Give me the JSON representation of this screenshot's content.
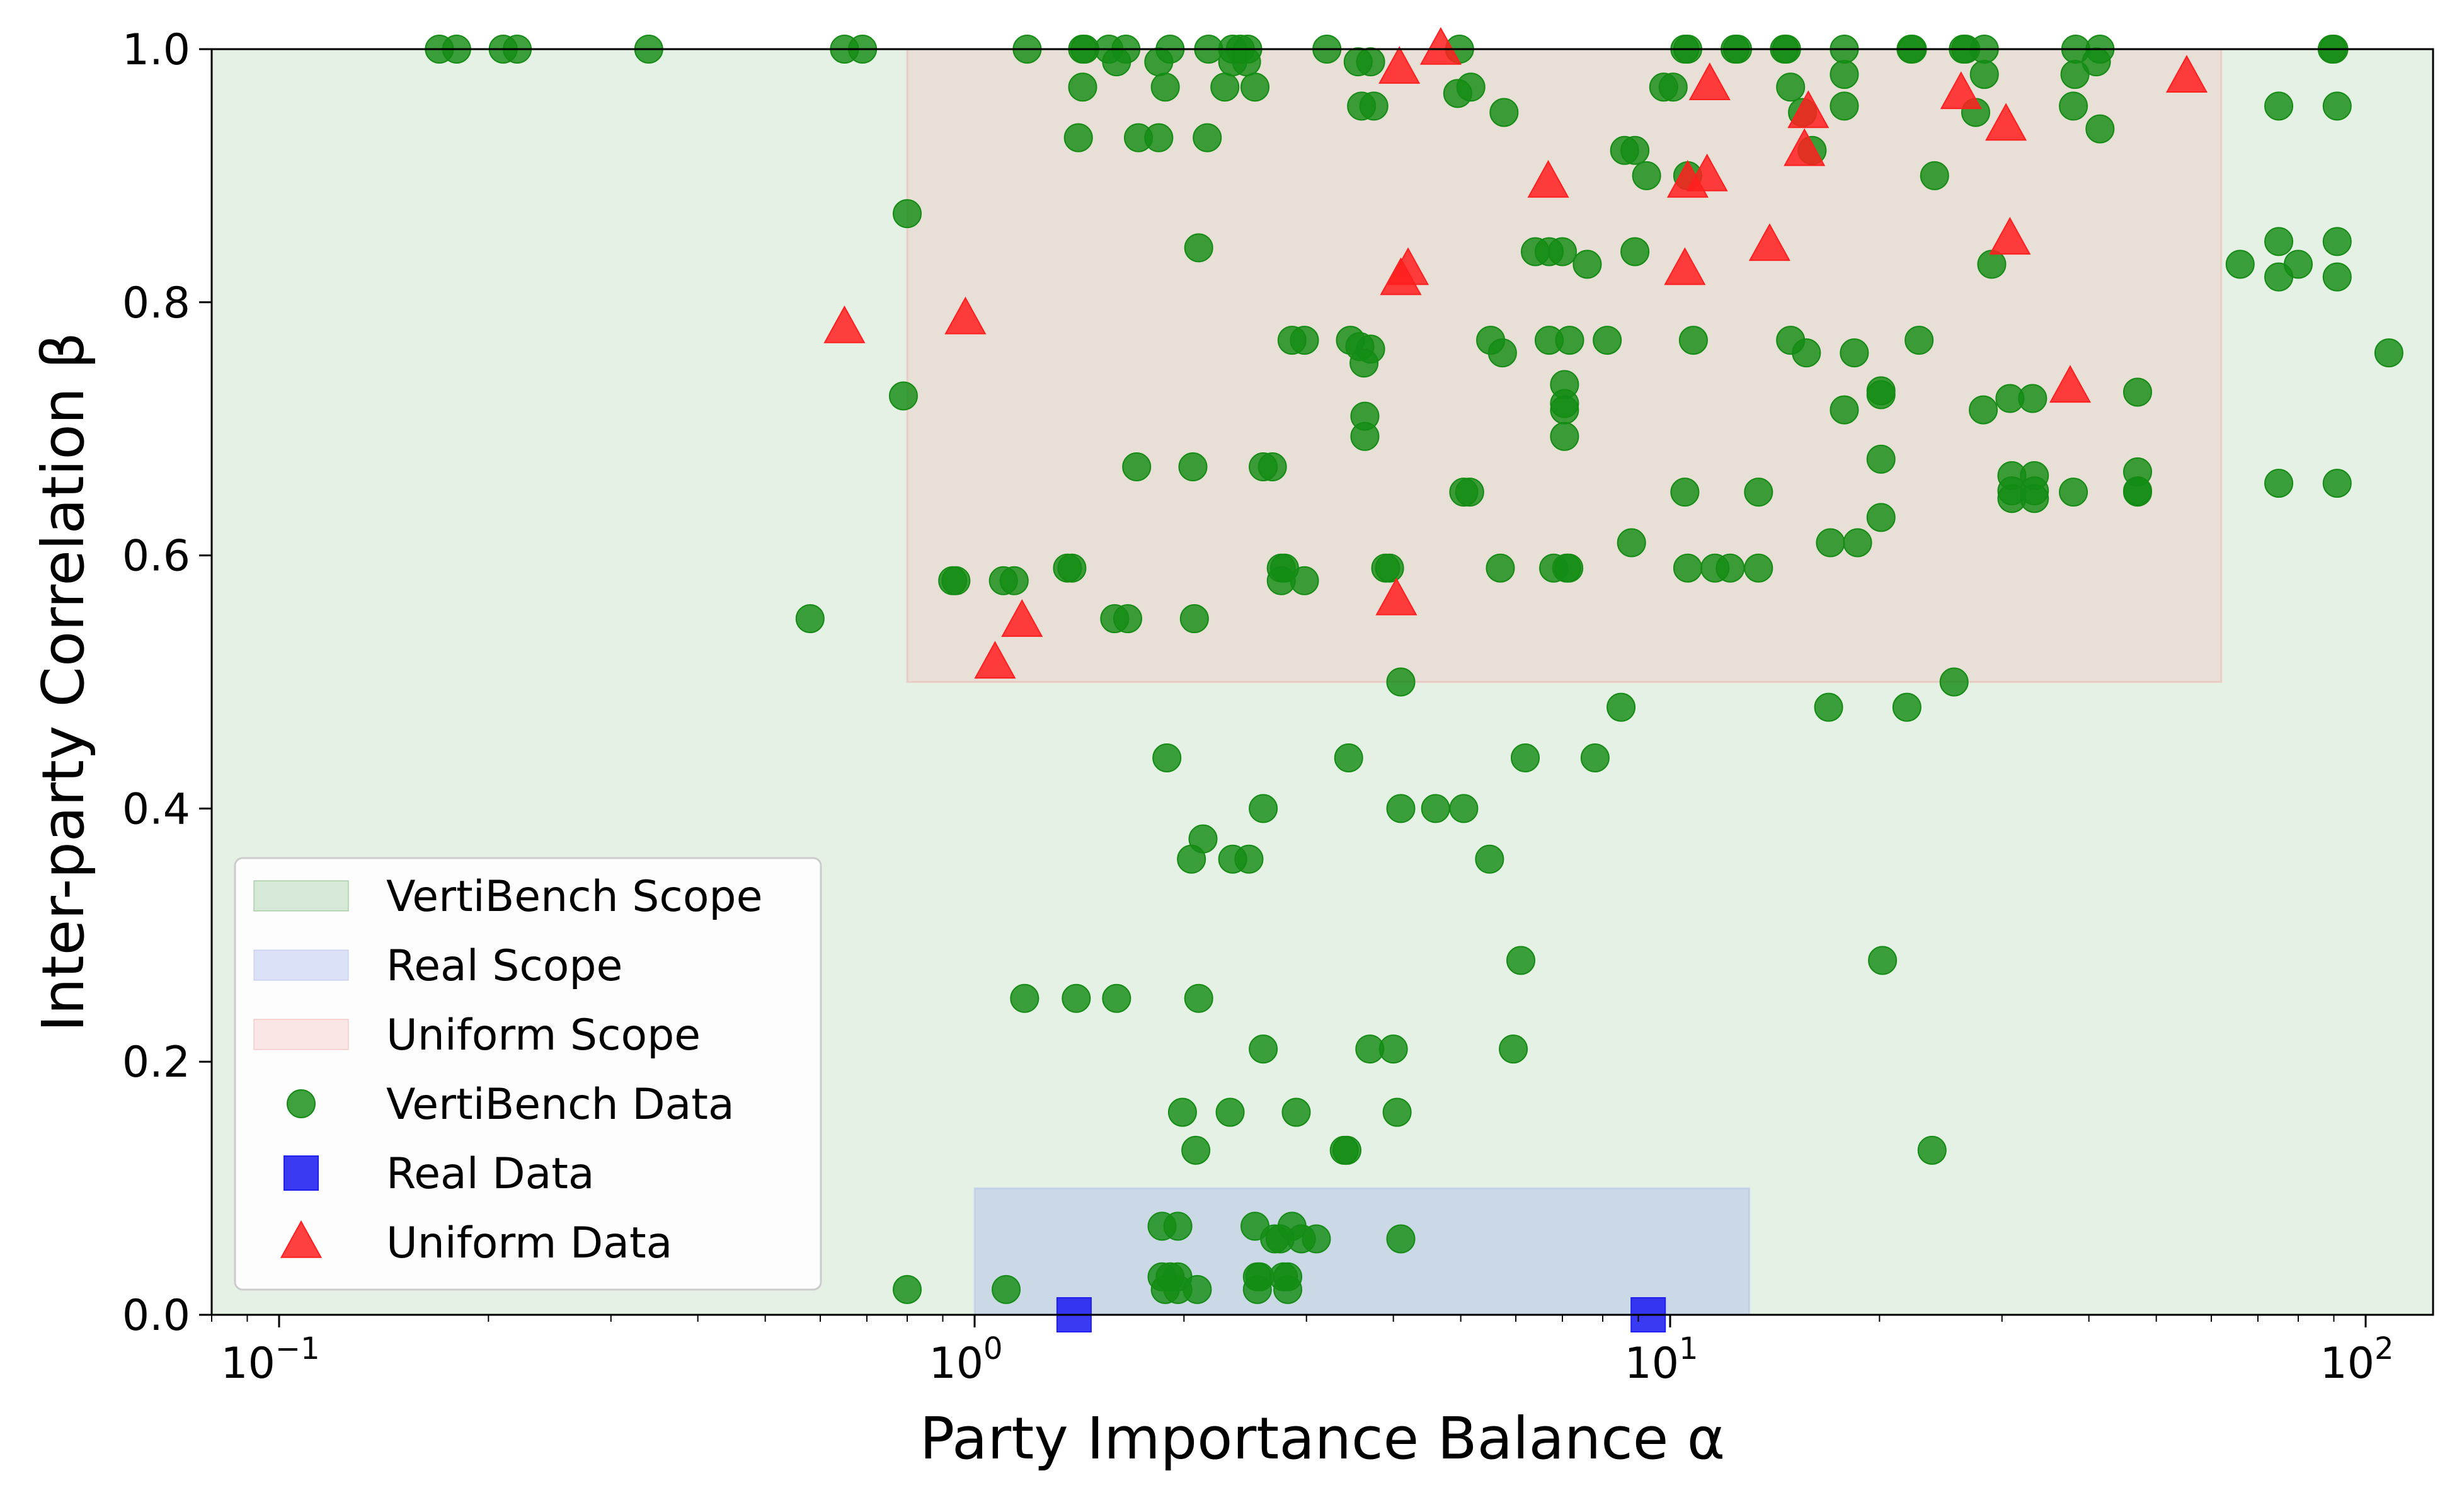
{
  "chart_data": {
    "type": "scatter",
    "xlabel": "Party Importance Balance α",
    "ylabel": "Inter-party Correlation β",
    "xscale": "log",
    "xlim": [
      0.08,
      125
    ],
    "ylim": [
      0.0,
      1.0
    ],
    "grid": false,
    "legend_position": "lower-left",
    "x_ticks": [
      {
        "base": "10",
        "exp": "−1",
        "value": 0.1
      },
      {
        "base": "10",
        "exp": "0",
        "value": 1
      },
      {
        "base": "10",
        "exp": "1",
        "value": 10
      },
      {
        "base": "10",
        "exp": "2",
        "value": 100
      }
    ],
    "y_ticks": [
      {
        "label": "0.0",
        "value": 0.0
      },
      {
        "label": "0.2",
        "value": 0.2
      },
      {
        "label": "0.4",
        "value": 0.4
      },
      {
        "label": "0.6",
        "value": 0.6
      },
      {
        "label": "0.8",
        "value": 0.8
      },
      {
        "label": "1.0",
        "value": 1.0
      }
    ],
    "regions": [
      {
        "name": "VertiBench Scope",
        "x": [
          0.08,
          125
        ],
        "y": [
          0.0,
          1.0
        ],
        "color": "#2e8b2e",
        "opacity": 0.12
      },
      {
        "name": "Uniform Scope",
        "x": [
          0.8,
          62
        ],
        "y": [
          0.5,
          1.0
        ],
        "color": "#f08080",
        "opacity": 0.16
      },
      {
        "name": "Real Scope",
        "x": [
          1.0,
          13
        ],
        "y": [
          0.0,
          0.1
        ],
        "color": "#8fa3e8",
        "opacity": 0.3
      }
    ],
    "series": [
      {
        "name": "VertiBench Data",
        "marker": "circle",
        "color": "#148c14",
        "points": [
          [
            0.17,
            1.0
          ],
          [
            0.18,
            1.0
          ],
          [
            0.21,
            1.0
          ],
          [
            0.22,
            1.0
          ],
          [
            0.34,
            1.0
          ],
          [
            0.65,
            1.0
          ],
          [
            0.69,
            1.0
          ],
          [
            1.19,
            1.0
          ],
          [
            1.43,
            1.0
          ],
          [
            1.44,
            1.0
          ],
          [
            1.56,
            1.0
          ],
          [
            1.65,
            1.0
          ],
          [
            1.91,
            1.0
          ],
          [
            2.17,
            1.0
          ],
          [
            2.35,
            1.0
          ],
          [
            2.41,
            1.0
          ],
          [
            2.47,
            1.0
          ],
          [
            3.21,
            1.0
          ],
          [
            4.98,
            1.0
          ],
          [
            10.5,
            1.0
          ],
          [
            10.6,
            1.0
          ],
          [
            12.4,
            1.0
          ],
          [
            12.5,
            1.0
          ],
          [
            14.6,
            1.0
          ],
          [
            14.7,
            1.0
          ],
          [
            17.8,
            1.0
          ],
          [
            22.2,
            1.0
          ],
          [
            22.3,
            1.0
          ],
          [
            26.4,
            1.0
          ],
          [
            26.6,
            1.0
          ],
          [
            28.3,
            1.0
          ],
          [
            38.3,
            1.0
          ],
          [
            41.5,
            1.0
          ],
          [
            89.5,
            1.0
          ],
          [
            90.0,
            1.0
          ],
          [
            1.6,
            0.99
          ],
          [
            1.84,
            0.99
          ],
          [
            2.35,
            0.99
          ],
          [
            2.46,
            0.99
          ],
          [
            3.56,
            0.99
          ],
          [
            3.71,
            0.99
          ],
          [
            41.0,
            0.99
          ],
          [
            1.43,
            0.97
          ],
          [
            1.88,
            0.97
          ],
          [
            2.29,
            0.97
          ],
          [
            2.53,
            0.97
          ],
          [
            4.95,
            0.965
          ],
          [
            5.17,
            0.97
          ],
          [
            9.79,
            0.97
          ],
          [
            10.1,
            0.97
          ],
          [
            14.9,
            0.97
          ],
          [
            15.5,
            0.95
          ],
          [
            17.8,
            0.98
          ],
          [
            27.5,
            0.95
          ],
          [
            28.3,
            0.98
          ],
          [
            38.2,
            0.98
          ],
          [
            3.6,
            0.955
          ],
          [
            3.75,
            0.955
          ],
          [
            5.77,
            0.95
          ],
          [
            17.8,
            0.955
          ],
          [
            75.0,
            0.955
          ],
          [
            91.0,
            0.955
          ],
          [
            38.0,
            0.955
          ],
          [
            1.41,
            0.93
          ],
          [
            1.72,
            0.93
          ],
          [
            1.84,
            0.93
          ],
          [
            2.16,
            0.93
          ],
          [
            41.5,
            0.937
          ],
          [
            8.6,
            0.92
          ],
          [
            8.9,
            0.92
          ],
          [
            9.25,
            0.9
          ],
          [
            10.6,
            0.9
          ],
          [
            16.0,
            0.92
          ],
          [
            24.0,
            0.9
          ],
          [
            0.8,
            0.87
          ],
          [
            2.1,
            0.843
          ],
          [
            6.4,
            0.84
          ],
          [
            6.7,
            0.84
          ],
          [
            7.0,
            0.84
          ],
          [
            7.6,
            0.83
          ],
          [
            8.9,
            0.84
          ],
          [
            29.0,
            0.83
          ],
          [
            66.0,
            0.83
          ],
          [
            75.0,
            0.82
          ],
          [
            75.0,
            0.848
          ],
          [
            80.0,
            0.83
          ],
          [
            91.0,
            0.82
          ],
          [
            91.0,
            0.848
          ],
          [
            2.86,
            0.77
          ],
          [
            2.98,
            0.77
          ],
          [
            3.47,
            0.77
          ],
          [
            3.58,
            0.765
          ],
          [
            3.71,
            0.763
          ],
          [
            5.52,
            0.77
          ],
          [
            5.74,
            0.76
          ],
          [
            6.7,
            0.77
          ],
          [
            7.17,
            0.77
          ],
          [
            8.12,
            0.77
          ],
          [
            10.8,
            0.77
          ],
          [
            14.9,
            0.77
          ],
          [
            15.7,
            0.76
          ],
          [
            18.4,
            0.76
          ],
          [
            22.8,
            0.77
          ],
          [
            108.0,
            0.76
          ],
          [
            3.63,
            0.752
          ],
          [
            7.05,
            0.735
          ],
          [
            7.05,
            0.72
          ],
          [
            7.05,
            0.715
          ],
          [
            3.64,
            0.71
          ],
          [
            3.64,
            0.694
          ],
          [
            7.05,
            0.694
          ],
          [
            17.8,
            0.715
          ],
          [
            20.1,
            0.73
          ],
          [
            20.1,
            0.727
          ],
          [
            28.2,
            0.715
          ],
          [
            30.8,
            0.724
          ],
          [
            33.2,
            0.724
          ],
          [
            47.0,
            0.729
          ],
          [
            0.79,
            0.726
          ],
          [
            1.71,
            0.67
          ],
          [
            2.06,
            0.67
          ],
          [
            2.6,
            0.67
          ],
          [
            2.68,
            0.67
          ],
          [
            5.05,
            0.65
          ],
          [
            5.15,
            0.65
          ],
          [
            10.5,
            0.65
          ],
          [
            13.4,
            0.65
          ],
          [
            20.1,
            0.676
          ],
          [
            20.1,
            0.63
          ],
          [
            31.0,
            0.663
          ],
          [
            31.0,
            0.651
          ],
          [
            31.0,
            0.645
          ],
          [
            33.4,
            0.663
          ],
          [
            33.4,
            0.651
          ],
          [
            33.4,
            0.645
          ],
          [
            38.0,
            0.65
          ],
          [
            47.0,
            0.666
          ],
          [
            47.0,
            0.651
          ],
          [
            47.0,
            0.65
          ],
          [
            75.0,
            0.657
          ],
          [
            91.0,
            0.657
          ],
          [
            1.36,
            0.59
          ],
          [
            1.38,
            0.59
          ],
          [
            2.76,
            0.59
          ],
          [
            2.79,
            0.59
          ],
          [
            2.76,
            0.58
          ],
          [
            2.98,
            0.58
          ],
          [
            3.9,
            0.59
          ],
          [
            3.95,
            0.59
          ],
          [
            5.7,
            0.59
          ],
          [
            6.8,
            0.59
          ],
          [
            7.1,
            0.59
          ],
          [
            7.15,
            0.59
          ],
          [
            8.8,
            0.61
          ],
          [
            10.6,
            0.59
          ],
          [
            11.6,
            0.59
          ],
          [
            12.2,
            0.59
          ],
          [
            13.4,
            0.59
          ],
          [
            17.0,
            0.61
          ],
          [
            18.6,
            0.61
          ],
          [
            0.93,
            0.58
          ],
          [
            0.94,
            0.58
          ],
          [
            1.1,
            0.58
          ],
          [
            1.14,
            0.58
          ],
          [
            0.58,
            0.55
          ],
          [
            1.59,
            0.55
          ],
          [
            1.66,
            0.55
          ],
          [
            2.07,
            0.55
          ],
          [
            4.1,
            0.5
          ],
          [
            8.5,
            0.48
          ],
          [
            16.9,
            0.48
          ],
          [
            21.9,
            0.48
          ],
          [
            25.6,
            0.5
          ],
          [
            1.89,
            0.44
          ],
          [
            3.45,
            0.44
          ],
          [
            6.19,
            0.44
          ],
          [
            7.8,
            0.44
          ],
          [
            2.6,
            0.4
          ],
          [
            4.1,
            0.4
          ],
          [
            4.6,
            0.4
          ],
          [
            5.05,
            0.4
          ],
          [
            2.13,
            0.376
          ],
          [
            2.05,
            0.36
          ],
          [
            2.35,
            0.36
          ],
          [
            2.48,
            0.36
          ],
          [
            5.5,
            0.36
          ],
          [
            6.1,
            0.28
          ],
          [
            20.2,
            0.28
          ],
          [
            1.18,
            0.25
          ],
          [
            1.4,
            0.25
          ],
          [
            1.6,
            0.25
          ],
          [
            2.1,
            0.25
          ],
          [
            2.6,
            0.21
          ],
          [
            3.7,
            0.21
          ],
          [
            4.0,
            0.21
          ],
          [
            5.95,
            0.21
          ],
          [
            1.99,
            0.16
          ],
          [
            2.33,
            0.16
          ],
          [
            2.9,
            0.16
          ],
          [
            4.05,
            0.16
          ],
          [
            2.08,
            0.13
          ],
          [
            3.4,
            0.13
          ],
          [
            3.43,
            0.13
          ],
          [
            23.8,
            0.13
          ],
          [
            1.86,
            0.07
          ],
          [
            1.96,
            0.07
          ],
          [
            2.53,
            0.07
          ],
          [
            2.86,
            0.07
          ],
          [
            2.75,
            0.06
          ],
          [
            2.95,
            0.06
          ],
          [
            3.1,
            0.06
          ],
          [
            2.7,
            0.06
          ],
          [
            4.1,
            0.06
          ],
          [
            1.86,
            0.03
          ],
          [
            1.91,
            0.03
          ],
          [
            1.96,
            0.03
          ],
          [
            2.55,
            0.03
          ],
          [
            2.57,
            0.03
          ],
          [
            2.78,
            0.03
          ],
          [
            2.82,
            0.03
          ],
          [
            0.8,
            0.02
          ],
          [
            1.11,
            0.02
          ],
          [
            1.88,
            0.02
          ],
          [
            1.96,
            0.02
          ],
          [
            2.09,
            0.02
          ],
          [
            2.55,
            0.02
          ],
          [
            2.82,
            0.02
          ]
        ]
      },
      {
        "name": "Real Data",
        "marker": "square",
        "color": "#1f1ff0",
        "points": [
          [
            1.39,
            0.0
          ],
          [
            9.3,
            0.0
          ]
        ]
      },
      {
        "name": "Uniform Data",
        "marker": "triangle",
        "color": "#ff1f1f",
        "points": [
          [
            0.65,
            0.78
          ],
          [
            0.97,
            0.787
          ],
          [
            1.07,
            0.515
          ],
          [
            1.17,
            0.548
          ],
          [
            4.04,
            0.565
          ],
          [
            4.08,
            0.985
          ],
          [
            4.68,
            1.0
          ],
          [
            4.1,
            0.818
          ],
          [
            4.2,
            0.826
          ],
          [
            6.68,
            0.895
          ],
          [
            10.5,
            0.826
          ],
          [
            10.6,
            0.895
          ],
          [
            11.3,
            0.9
          ],
          [
            11.4,
            0.972
          ],
          [
            13.9,
            0.845
          ],
          [
            15.6,
            0.92
          ],
          [
            15.8,
            0.95
          ],
          [
            26.2,
            0.965
          ],
          [
            30.4,
            0.94
          ],
          [
            30.8,
            0.85
          ],
          [
            37.6,
            0.733
          ],
          [
            55.3,
            0.978
          ]
        ]
      }
    ]
  }
}
